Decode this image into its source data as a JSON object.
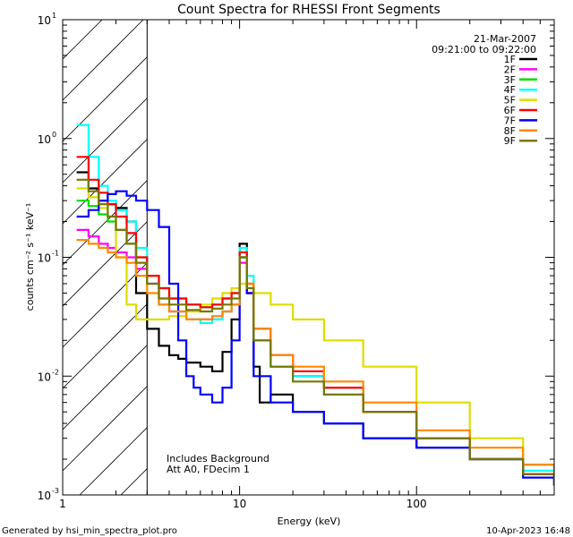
{
  "chart_data": {
    "type": "line",
    "title": "Count Spectra for RHESSI Front Segments",
    "xlabel": "Energy (keV)",
    "ylabel": "counts cm⁻² s⁻¹ keV⁻¹",
    "xscale": "log",
    "yscale": "log",
    "xlim": [
      1,
      600
    ],
    "ylim": [
      0.001,
      10
    ],
    "x_ticks": [
      {
        "value": 1,
        "label": "1"
      },
      {
        "value": 10,
        "label": "10"
      },
      {
        "value": 100,
        "label": "100"
      }
    ],
    "y_ticks": [
      {
        "value": 0.001,
        "base": "10",
        "exp": "-3"
      },
      {
        "value": 0.01,
        "base": "10",
        "exp": "-2"
      },
      {
        "value": 0.1,
        "base": "10",
        "exp": "-1"
      },
      {
        "value": 1,
        "base": "10",
        "exp": "0"
      },
      {
        "value": 10,
        "base": "10",
        "exp": "1"
      }
    ],
    "hatched_region_keV": [
      1,
      3
    ],
    "date": "21-Mar-2007",
    "time_range": "09:21:00 to 09:22:00",
    "annotations": [
      "Includes Background",
      "Att A0, FDecim 1"
    ],
    "legend_position": "top-right",
    "series": [
      {
        "name": "1F",
        "color": "#000000",
        "points": [
          [
            1.2,
            0.52
          ],
          [
            1.4,
            0.38
          ],
          [
            1.6,
            0.3
          ],
          [
            1.8,
            0.28
          ],
          [
            2.0,
            0.26
          ],
          [
            2.3,
            0.2
          ],
          [
            2.6,
            0.05
          ],
          [
            3.0,
            0.025
          ],
          [
            3.5,
            0.018
          ],
          [
            4.0,
            0.015
          ],
          [
            4.5,
            0.014
          ],
          [
            5.0,
            0.013
          ],
          [
            6.0,
            0.012
          ],
          [
            7.0,
            0.011
          ],
          [
            8.0,
            0.016
          ],
          [
            9.0,
            0.03
          ],
          [
            10.0,
            0.13
          ],
          [
            11.0,
            0.05
          ],
          [
            12.0,
            0.012
          ],
          [
            13,
            0.006
          ],
          [
            15,
            0.007
          ],
          [
            20,
            0.005
          ],
          [
            30,
            0.004
          ],
          [
            50,
            0.003
          ],
          [
            100,
            0.0025
          ],
          [
            200,
            0.002
          ],
          [
            400,
            0.0015
          ],
          [
            600,
            0.0012
          ]
        ]
      },
      {
        "name": "2F",
        "color": "#ff00ff",
        "points": [
          [
            1.2,
            0.17
          ],
          [
            1.4,
            0.15
          ],
          [
            1.6,
            0.13
          ],
          [
            1.8,
            0.12
          ],
          [
            2.0,
            0.11
          ],
          [
            2.3,
            0.1
          ],
          [
            2.6,
            0.08
          ],
          [
            3.0,
            0.06
          ],
          [
            3.5,
            0.04
          ],
          [
            4.0,
            0.035
          ],
          [
            5.0,
            0.03
          ],
          [
            6.0,
            0.03
          ],
          [
            7.0,
            0.03
          ],
          [
            8.0,
            0.035
          ],
          [
            9.0,
            0.04
          ],
          [
            10.0,
            0.09
          ],
          [
            11.0,
            0.05
          ],
          [
            12.0,
            0.025
          ],
          [
            15,
            0.015
          ],
          [
            20,
            0.01
          ],
          [
            30,
            0.008
          ],
          [
            50,
            0.005
          ],
          [
            100,
            0.003
          ],
          [
            200,
            0.002
          ],
          [
            400,
            0.0015
          ],
          [
            600,
            0.0012
          ]
        ]
      },
      {
        "name": "3F",
        "color": "#00dd00",
        "points": [
          [
            1.2,
            0.3
          ],
          [
            1.4,
            0.27
          ],
          [
            1.6,
            0.23
          ],
          [
            1.8,
            0.2
          ],
          [
            2.0,
            0.17
          ],
          [
            2.3,
            0.13
          ],
          [
            2.6,
            0.1
          ],
          [
            3.0,
            0.07
          ],
          [
            3.5,
            0.055
          ],
          [
            4.0,
            0.045
          ],
          [
            5.0,
            0.04
          ],
          [
            6.0,
            0.038
          ],
          [
            7.0,
            0.04
          ],
          [
            8.0,
            0.045
          ],
          [
            9.0,
            0.05
          ],
          [
            10.0,
            0.1
          ],
          [
            11.0,
            0.06
          ],
          [
            12.0,
            0.02
          ],
          [
            15,
            0.012
          ],
          [
            20,
            0.01
          ],
          [
            30,
            0.008
          ],
          [
            50,
            0.005
          ],
          [
            100,
            0.003
          ],
          [
            200,
            0.002
          ],
          [
            400,
            0.0015
          ],
          [
            600,
            0.0012
          ]
        ]
      },
      {
        "name": "4F",
        "color": "#00ffff",
        "points": [
          [
            1.2,
            1.3
          ],
          [
            1.4,
            0.7
          ],
          [
            1.6,
            0.4
          ],
          [
            1.8,
            0.3
          ],
          [
            2.0,
            0.25
          ],
          [
            2.3,
            0.2
          ],
          [
            2.6,
            0.12
          ],
          [
            3.0,
            0.06
          ],
          [
            3.5,
            0.04
          ],
          [
            4.0,
            0.035
          ],
          [
            5.0,
            0.03
          ],
          [
            6.0,
            0.028
          ],
          [
            7.0,
            0.03
          ],
          [
            8.0,
            0.035
          ],
          [
            9.0,
            0.04
          ],
          [
            10.0,
            0.12
          ],
          [
            11.0,
            0.07
          ],
          [
            12.0,
            0.025
          ],
          [
            15,
            0.012
          ],
          [
            20,
            0.01
          ],
          [
            30,
            0.007
          ],
          [
            50,
            0.005
          ],
          [
            100,
            0.003
          ],
          [
            200,
            0.002
          ],
          [
            400,
            0.0016
          ],
          [
            600,
            0.0012
          ]
        ]
      },
      {
        "name": "5F",
        "color": "#dddd00",
        "points": [
          [
            1.2,
            0.38
          ],
          [
            1.4,
            0.32
          ],
          [
            1.6,
            0.26
          ],
          [
            1.8,
            0.22
          ],
          [
            2.0,
            0.1
          ],
          [
            2.3,
            0.04
          ],
          [
            2.6,
            0.03
          ],
          [
            3.0,
            0.03
          ],
          [
            3.5,
            0.03
          ],
          [
            4.0,
            0.032
          ],
          [
            5.0,
            0.035
          ],
          [
            6.0,
            0.04
          ],
          [
            7.0,
            0.045
          ],
          [
            8.0,
            0.05
          ],
          [
            9.0,
            0.055
          ],
          [
            10.0,
            0.06
          ],
          [
            12,
            0.05
          ],
          [
            15,
            0.04
          ],
          [
            20,
            0.03
          ],
          [
            30,
            0.02
          ],
          [
            50,
            0.012
          ],
          [
            100,
            0.006
          ],
          [
            200,
            0.003
          ],
          [
            400,
            0.0018
          ],
          [
            600,
            0.0014
          ]
        ]
      },
      {
        "name": "6F",
        "color": "#ff0000",
        "points": [
          [
            1.2,
            0.7
          ],
          [
            1.4,
            0.45
          ],
          [
            1.6,
            0.35
          ],
          [
            1.8,
            0.28
          ],
          [
            2.0,
            0.22
          ],
          [
            2.3,
            0.16
          ],
          [
            2.6,
            0.1
          ],
          [
            3.0,
            0.07
          ],
          [
            3.5,
            0.055
          ],
          [
            4.0,
            0.045
          ],
          [
            5.0,
            0.04
          ],
          [
            6.0,
            0.038
          ],
          [
            7.0,
            0.04
          ],
          [
            8.0,
            0.045
          ],
          [
            9.0,
            0.05
          ],
          [
            10.0,
            0.11
          ],
          [
            11.0,
            0.06
          ],
          [
            12.0,
            0.025
          ],
          [
            15,
            0.015
          ],
          [
            20,
            0.011
          ],
          [
            30,
            0.008
          ],
          [
            50,
            0.005
          ],
          [
            100,
            0.003
          ],
          [
            200,
            0.002
          ],
          [
            400,
            0.0015
          ],
          [
            600,
            0.0012
          ]
        ]
      },
      {
        "name": "7F",
        "color": "#0000ff",
        "points": [
          [
            1.2,
            0.22
          ],
          [
            1.4,
            0.25
          ],
          [
            1.6,
            0.3
          ],
          [
            1.8,
            0.34
          ],
          [
            2.0,
            0.36
          ],
          [
            2.3,
            0.33
          ],
          [
            2.6,
            0.3
          ],
          [
            3.0,
            0.25
          ],
          [
            3.5,
            0.18
          ],
          [
            4.0,
            0.06
          ],
          [
            4.5,
            0.02
          ],
          [
            5.0,
            0.01
          ],
          [
            5.5,
            0.008
          ],
          [
            6.0,
            0.007
          ],
          [
            7.0,
            0.006
          ],
          [
            8.0,
            0.008
          ],
          [
            9.0,
            0.02
          ],
          [
            10.0,
            0.1
          ],
          [
            11.0,
            0.05
          ],
          [
            12.0,
            0.01
          ],
          [
            15,
            0.006
          ],
          [
            20,
            0.005
          ],
          [
            30,
            0.004
          ],
          [
            50,
            0.003
          ],
          [
            100,
            0.0025
          ],
          [
            200,
            0.002
          ],
          [
            400,
            0.0014
          ],
          [
            600,
            0.0012
          ]
        ]
      },
      {
        "name": "8F",
        "color": "#ff8800",
        "points": [
          [
            1.2,
            0.14
          ],
          [
            1.4,
            0.13
          ],
          [
            1.6,
            0.12
          ],
          [
            1.8,
            0.11
          ],
          [
            2.0,
            0.1
          ],
          [
            2.3,
            0.09
          ],
          [
            2.6,
            0.07
          ],
          [
            3.0,
            0.05
          ],
          [
            3.5,
            0.04
          ],
          [
            4.0,
            0.035
          ],
          [
            5.0,
            0.03
          ],
          [
            6.0,
            0.03
          ],
          [
            7.0,
            0.032
          ],
          [
            8.0,
            0.035
          ],
          [
            9.0,
            0.04
          ],
          [
            10.0,
            0.1
          ],
          [
            11.0,
            0.06
          ],
          [
            12.0,
            0.025
          ],
          [
            15,
            0.015
          ],
          [
            20,
            0.012
          ],
          [
            30,
            0.009
          ],
          [
            50,
            0.006
          ],
          [
            100,
            0.0035
          ],
          [
            200,
            0.0025
          ],
          [
            400,
            0.0018
          ],
          [
            600,
            0.0014
          ]
        ]
      },
      {
        "name": "9F",
        "color": "#777700",
        "points": [
          [
            1.2,
            0.45
          ],
          [
            1.4,
            0.36
          ],
          [
            1.6,
            0.28
          ],
          [
            1.8,
            0.22
          ],
          [
            2.0,
            0.17
          ],
          [
            2.3,
            0.13
          ],
          [
            2.6,
            0.09
          ],
          [
            3.0,
            0.06
          ],
          [
            3.5,
            0.045
          ],
          [
            4.0,
            0.04
          ],
          [
            5.0,
            0.036
          ],
          [
            6.0,
            0.035
          ],
          [
            7.0,
            0.037
          ],
          [
            8.0,
            0.04
          ],
          [
            9.0,
            0.045
          ],
          [
            10.0,
            0.1
          ],
          [
            11.0,
            0.055
          ],
          [
            12.0,
            0.02
          ],
          [
            15,
            0.012
          ],
          [
            20,
            0.009
          ],
          [
            30,
            0.007
          ],
          [
            50,
            0.005
          ],
          [
            100,
            0.003
          ],
          [
            200,
            0.002
          ],
          [
            400,
            0.0015
          ],
          [
            600,
            0.0012
          ]
        ]
      }
    ]
  },
  "footer": {
    "generated_by": "Generated by hsi_min_spectra_plot.pro",
    "timestamp": "10-Apr-2023 16:48"
  }
}
